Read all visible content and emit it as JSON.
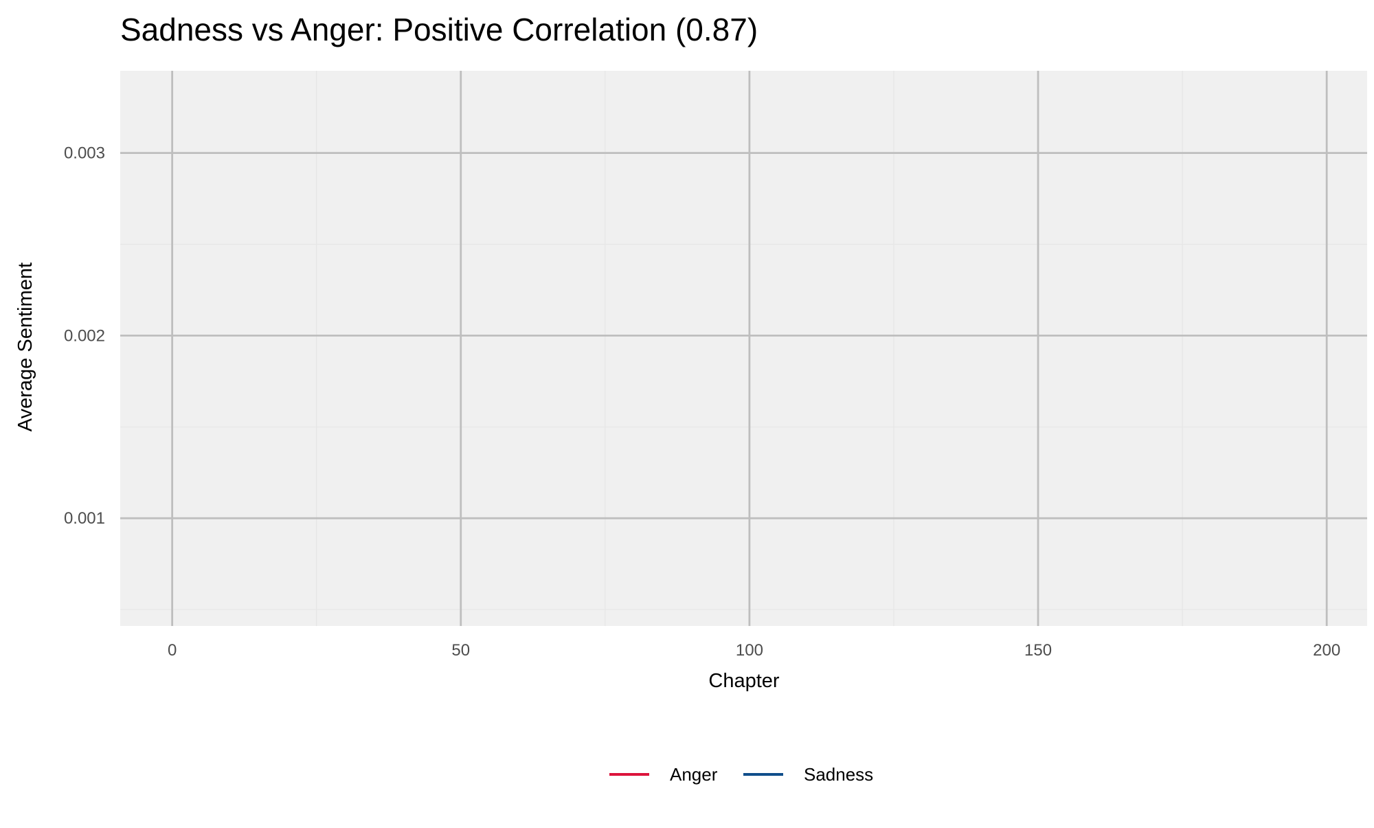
{
  "chart_data": {
    "type": "line",
    "title": "Sadness vs Anger: Positive Correlation (0.87)",
    "xlabel": "Chapter",
    "ylabel": "Average Sentiment",
    "xlim": [
      -9,
      207
    ],
    "ylim": [
      0.00041,
      0.00345
    ],
    "x_ticks": [
      0,
      50,
      100,
      150,
      200
    ],
    "x_tick_labels": [
      "0",
      "50",
      "100",
      "150",
      "200"
    ],
    "y_ticks": [
      0.001,
      0.002,
      0.003
    ],
    "y_tick_labels": [
      "0.001",
      "0.002",
      "0.003"
    ],
    "x_minor_ticks": [
      25,
      75,
      125,
      175
    ],
    "y_minor_ticks": [
      0.0005,
      0.0015,
      0.0025
    ],
    "grid": true,
    "legend_position": "bottom",
    "series": [
      {
        "name": "Anger",
        "color": "#DC143C",
        "x": [],
        "values": []
      },
      {
        "name": "Sadness",
        "color": "#104E8B",
        "x": [],
        "values": []
      }
    ],
    "colors": {
      "panel_background": "#F0F0F0",
      "major_grid": "#BEBEBE",
      "minor_grid": "#E6E6E6",
      "tick_label": "#4D4D4D",
      "text": "#000000"
    }
  }
}
